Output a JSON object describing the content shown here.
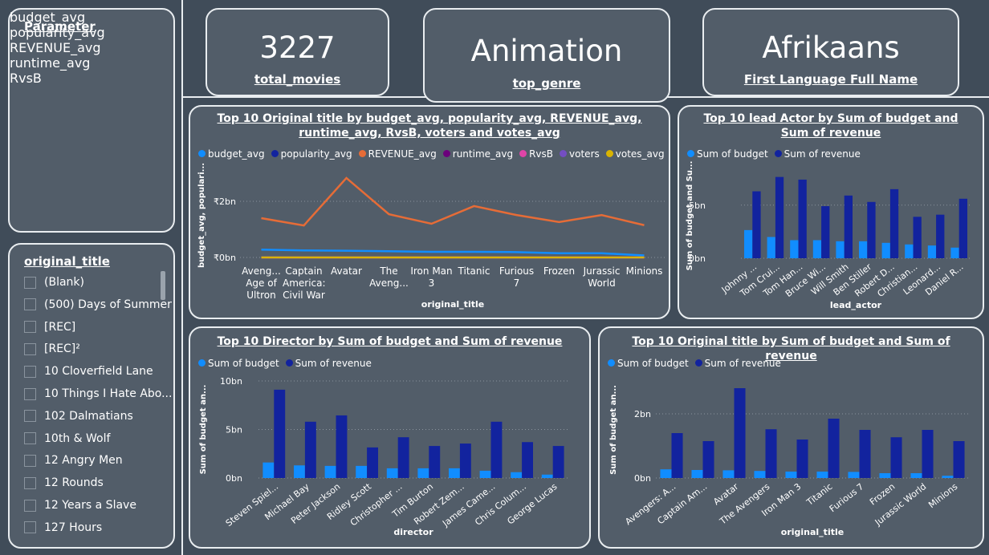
{
  "parameter_slicer": {
    "title": "Parameter",
    "items": [
      "budget_avg",
      "popularity_avg",
      "REVENUE_avg",
      "runtime_avg",
      "RvsB"
    ]
  },
  "title_slicer": {
    "title": "original_title",
    "items": [
      "(Blank)",
      "(500) Days of Summer",
      "[REC]",
      "[REC]²",
      "10 Cloverfield Lane",
      "10 Things I Hate Abo...",
      "102 Dalmatians",
      "10th & Wolf",
      "12 Angry Men",
      "12 Rounds",
      "12 Years a Slave",
      "127 Hours"
    ]
  },
  "cards": [
    {
      "value": 3227,
      "label": "total_movies"
    },
    {
      "value": "Animation",
      "label": "top_genre"
    },
    {
      "value": "Afrikaans",
      "label": "First Language Full Name"
    }
  ],
  "chart_data": [
    {
      "type": "line",
      "title": "Top 10 Original title by budget_avg, popularity_avg, REVENUE_avg, runtime_avg, RvsB, voters and votes_avg",
      "x_label": "original_title",
      "y_label": "budget_avg, populari...",
      "categories": [
        "Aveng... Age of Ultron",
        "Captain America: Civil War",
        "Avatar",
        "The Aveng...",
        "Iron Man 3",
        "Titanic",
        "Furious 7",
        "Frozen",
        "Jurassic World",
        "Minions"
      ],
      "series": [
        {
          "name": "budget_avg",
          "color": "#118dff",
          "values": [
            0.28,
            0.25,
            0.24,
            0.22,
            0.2,
            0.2,
            0.19,
            0.15,
            0.15,
            0.07
          ]
        },
        {
          "name": "popularity_avg",
          "color": "#12239e",
          "values": [
            0,
            0,
            0,
            0,
            0,
            0,
            0,
            0,
            0,
            0
          ]
        },
        {
          "name": "REVENUE_avg",
          "color": "#e66c37",
          "values": [
            1.4,
            1.14,
            2.83,
            1.54,
            1.2,
            1.83,
            1.51,
            1.26,
            1.51,
            1.15
          ]
        },
        {
          "name": "runtime_avg",
          "color": "#6b007b",
          "values": [
            0,
            0,
            0,
            0,
            0,
            0,
            0,
            0,
            0,
            0
          ]
        },
        {
          "name": "RvsB",
          "color": "#e044a7",
          "values": [
            0,
            0,
            0,
            0,
            0,
            0,
            0,
            0,
            0,
            0
          ]
        },
        {
          "name": "voters",
          "color": "#744ec2",
          "values": [
            0,
            0,
            0,
            0,
            0,
            0,
            0,
            0,
            0,
            0
          ]
        },
        {
          "name": "votes_avg",
          "color": "#d9b300",
          "values": [
            0,
            0,
            0,
            0,
            0,
            0,
            0,
            0,
            0,
            0
          ]
        }
      ],
      "ylim": [
        0,
        3
      ],
      "yticks": [
        {
          "value": 0,
          "label": "₹0bn"
        },
        {
          "value": 2,
          "label": "₹2bn"
        }
      ],
      "grid": true
    },
    {
      "type": "bar",
      "title": "Top 10 lead Actor by Sum of budget and Sum of revenue",
      "x_label": "lead_actor",
      "y_label": "Sum of budget and Su...",
      "categories": [
        "Johnny ...",
        "Tom Crui...",
        "Tom Han...",
        "Bruce Wi...",
        "Will Smith",
        "Ben Stiller",
        "Robert D...",
        "Christian...",
        "Leonard...",
        "Daniel R..."
      ],
      "series": [
        {
          "name": "Sum of budget",
          "color": "#118dff",
          "values": [
            2.65,
            2.0,
            1.7,
            1.7,
            1.6,
            1.6,
            1.45,
            1.3,
            1.2,
            1.0
          ]
        },
        {
          "name": "Sum of revenue",
          "color": "#12239e",
          "values": [
            6.3,
            7.65,
            7.4,
            4.9,
            5.9,
            5.3,
            6.5,
            3.9,
            4.1,
            5.6
          ]
        }
      ],
      "ylim": [
        0,
        8
      ],
      "yticks": [
        {
          "value": 0,
          "label": "0bn"
        },
        {
          "value": 5,
          "label": "5bn"
        }
      ],
      "grid": true
    },
    {
      "type": "bar",
      "title": "Top 10 Director by Sum of budget and Sum of revenue",
      "x_label": "director",
      "y_label": "Sum of budget an...",
      "categories": [
        "Steven Spiel...",
        "Michael Bay",
        "Peter Jackson",
        "Ridley Scott",
        "Christopher ...",
        "Tim Burton",
        "Robert Zem...",
        "James Came...",
        "Chris Colum...",
        "George Lucas"
      ],
      "series": [
        {
          "name": "Sum of budget",
          "color": "#118dff",
          "values": [
            1.6,
            1.3,
            1.25,
            1.25,
            1.0,
            1.0,
            1.0,
            0.75,
            0.6,
            0.35
          ]
        },
        {
          "name": "Sum of revenue",
          "color": "#12239e",
          "values": [
            9.1,
            5.8,
            6.45,
            3.15,
            4.2,
            3.3,
            3.55,
            5.8,
            3.7,
            3.3
          ]
        }
      ],
      "ylim": [
        0,
        10
      ],
      "yticks": [
        {
          "value": 0,
          "label": "0bn"
        },
        {
          "value": 5,
          "label": "5bn"
        },
        {
          "value": 10,
          "label": "10bn"
        }
      ],
      "grid": true
    },
    {
      "type": "bar",
      "title": "Top 10 Original title by Sum of budget and Sum of revenue",
      "x_label": "original_title",
      "y_label": "Sum of budget an...",
      "categories": [
        "Avengers: A...",
        "Captain Am...",
        "Avatar",
        "The Avengers",
        "Iron Man 3",
        "Titanic",
        "Furious 7",
        "Frozen",
        "Jurassic World",
        "Minions"
      ],
      "series": [
        {
          "name": "Sum of budget",
          "color": "#118dff",
          "values": [
            0.27,
            0.25,
            0.24,
            0.22,
            0.2,
            0.2,
            0.19,
            0.15,
            0.15,
            0.07
          ]
        },
        {
          "name": "Sum of revenue",
          "color": "#12239e",
          "values": [
            1.4,
            1.15,
            2.8,
            1.52,
            1.2,
            1.85,
            1.5,
            1.27,
            1.5,
            1.15
          ]
        }
      ],
      "ylim": [
        0,
        3
      ],
      "yticks": [
        {
          "value": 0,
          "label": "0bn"
        },
        {
          "value": 2,
          "label": "2bn"
        }
      ],
      "grid": true
    }
  ]
}
